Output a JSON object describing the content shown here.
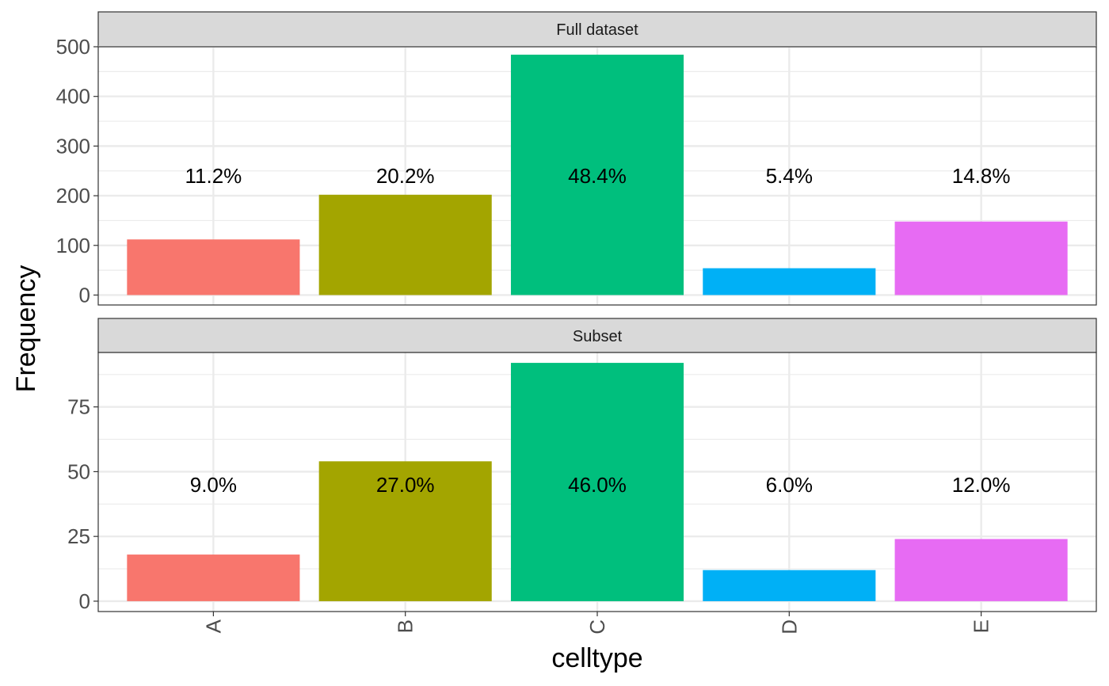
{
  "chart_data": {
    "type": "bar",
    "xlabel": "celltype",
    "ylabel": "Frequency",
    "categories": [
      "A",
      "B",
      "C",
      "D",
      "E"
    ],
    "colors": [
      "#F8766D",
      "#A3A500",
      "#00BF7D",
      "#00B0F6",
      "#E76BF3"
    ],
    "grid": true,
    "panels": [
      {
        "strip": "Full dataset",
        "values": [
          112,
          202,
          484,
          54,
          148
        ],
        "labels": [
          "11.2%",
          "20.2%",
          "48.4%",
          "5.4%",
          "14.8%"
        ],
        "label_y": 240,
        "ylim": [
          -20,
          500
        ],
        "yticks": [
          0,
          100,
          200,
          300,
          400,
          500
        ],
        "ytick_labels": [
          "0",
          "100",
          "200",
          "300",
          "400",
          "500"
        ]
      },
      {
        "strip": "Subset",
        "values": [
          18,
          54,
          92,
          12,
          24
        ],
        "labels": [
          "9.0%",
          "27.0%",
          "46.0%",
          "6.0%",
          "12.0%"
        ],
        "label_y": 45,
        "ylim": [
          -4,
          96
        ],
        "yticks": [
          0,
          25,
          50,
          75
        ],
        "ytick_labels": [
          "0",
          "25",
          "50",
          "75"
        ]
      }
    ]
  }
}
